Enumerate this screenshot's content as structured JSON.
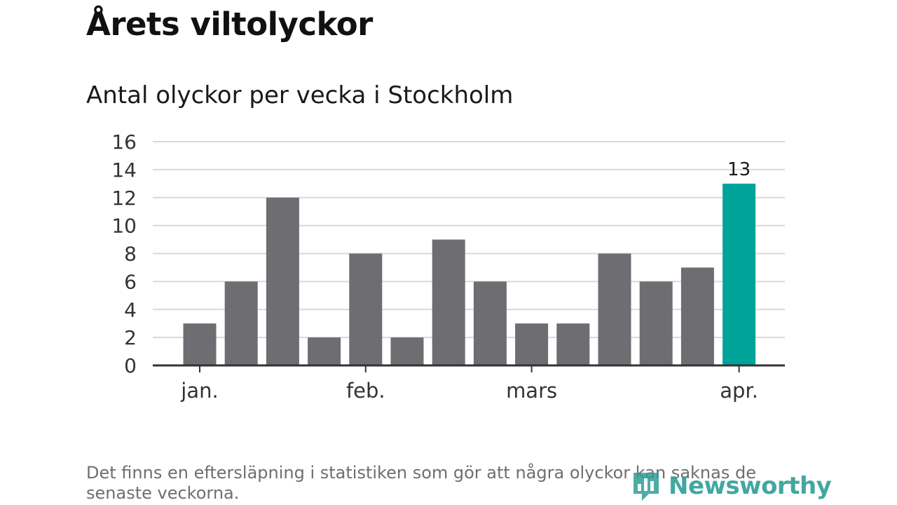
{
  "title": "Årets viltolyckor",
  "subtitle": "Antal olyckor per vecka i Stockholm",
  "footnote": "Det finns en eftersläpning i statistiken som gör att några olyckor kan saknas de senaste veckorna.",
  "logo": {
    "text": "Newsworthy",
    "icon": "newsworthy-logo-icon"
  },
  "colors": {
    "bar": "#6e6d72",
    "highlight": "#00a39a",
    "grid": "#d9d9d9",
    "axis": "#333333"
  },
  "chart_data": {
    "type": "bar",
    "title": "Antal olyckor per vecka i Stockholm",
    "ylabel": "",
    "xlabel": "",
    "ylim": [
      0,
      16
    ],
    "yticks": [
      "0",
      "2",
      "4",
      "6",
      "8",
      "10",
      "12",
      "14",
      "16"
    ],
    "values": [
      3,
      6,
      12,
      2,
      8,
      2,
      9,
      6,
      3,
      3,
      8,
      6,
      7,
      13
    ],
    "highlight_index": 13,
    "highlight_label": "13",
    "xtick_labels": [
      {
        "label": "jan.",
        "bar_index": 0
      },
      {
        "label": "feb.",
        "bar_index": 4
      },
      {
        "label": "mars",
        "bar_index": 8
      },
      {
        "label": "apr.",
        "bar_index": 13
      }
    ]
  }
}
